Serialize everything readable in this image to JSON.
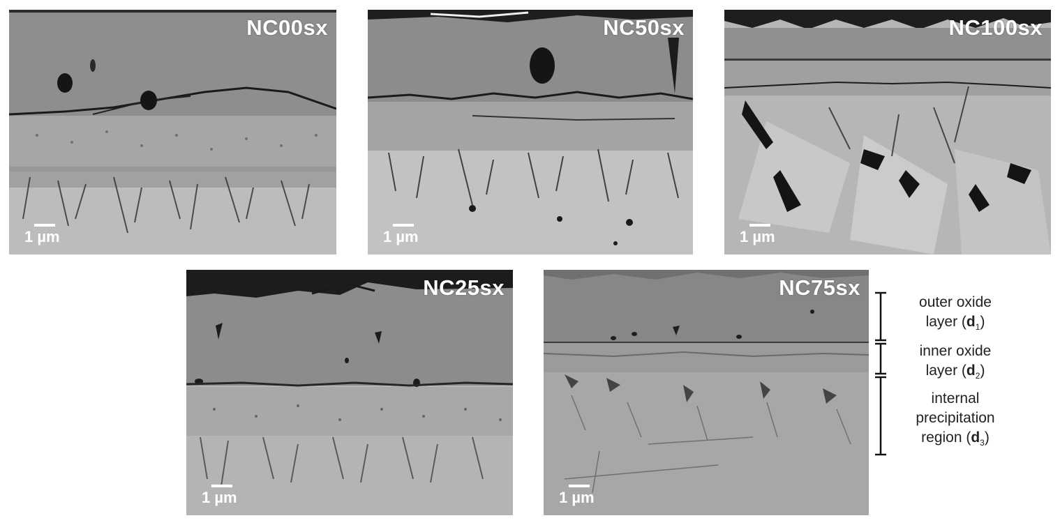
{
  "panels": [
    {
      "label": "NC00sx",
      "scale": "1 µm"
    },
    {
      "label": "NC50sx",
      "scale": "1 µm"
    },
    {
      "label": "NC100sx",
      "scale": "1 µm"
    },
    {
      "label": "NC25sx",
      "scale": "1 µm"
    },
    {
      "label": "NC75sx",
      "scale": "1 µm"
    }
  ],
  "legend": {
    "outer": {
      "line1": "outer oxide",
      "line2": "layer (",
      "sym": "d",
      "sub": "1",
      "close": ")"
    },
    "inner": {
      "line1": "inner oxide",
      "line2": "layer (",
      "sym": "d",
      "sub": "2",
      "close": ")"
    },
    "precip": {
      "line1": "internal",
      "line2": "precipitation",
      "line3": "region (",
      "sym": "d",
      "sub": "3",
      "close": ")"
    }
  },
  "colors": {
    "outer_oxide": "#8d8d8d",
    "inner_oxide": "#a9a9a9",
    "substrate": "#bdbdbd",
    "void": "#1e1e1e",
    "label": "#ffffff"
  }
}
